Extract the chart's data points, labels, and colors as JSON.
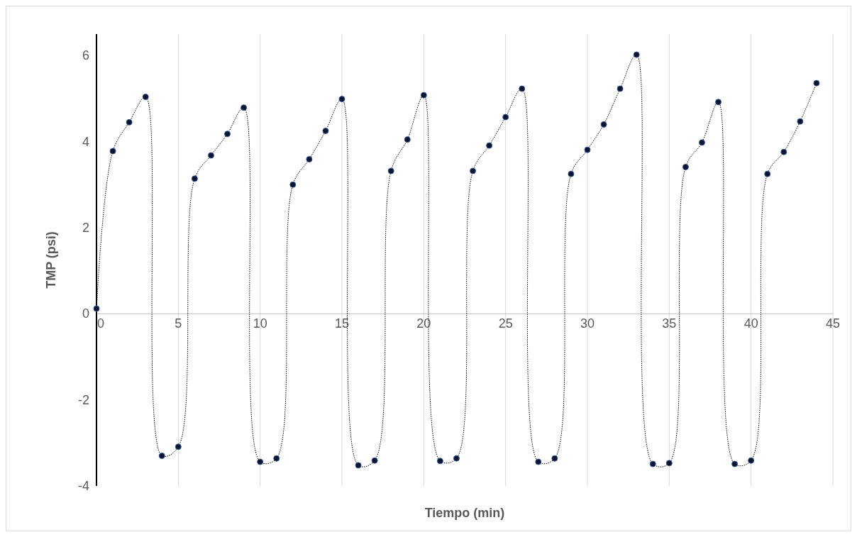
{
  "chart_data": {
    "type": "line",
    "xlabel": "Tiempo (min)",
    "ylabel": "TMP (psi)",
    "xlim": [
      0,
      45
    ],
    "xticks": [
      0,
      5,
      10,
      15,
      20,
      25,
      30,
      35,
      40,
      45
    ],
    "ylim": [
      -4,
      6.5
    ],
    "yticks": [
      -4,
      -2,
      0,
      2,
      4,
      6
    ],
    "grid": "x",
    "marker": "circle",
    "line_style": "dotted",
    "series": [
      {
        "color": "#000000",
        "x": [
          0,
          1,
          2,
          3,
          4,
          5,
          6,
          7,
          8,
          9,
          10,
          11,
          12,
          13,
          14,
          15,
          16,
          17,
          18,
          19,
          20,
          21,
          22,
          23,
          24,
          25,
          26,
          27,
          28,
          29,
          30,
          31,
          32,
          33,
          34,
          35,
          36,
          37,
          38,
          39,
          40,
          41,
          42,
          43,
          44
        ],
        "values": [
          0.12,
          3.78,
          4.45,
          5.04,
          -3.3,
          -3.09,
          3.14,
          3.68,
          4.18,
          4.79,
          -3.44,
          -3.36,
          3.0,
          3.59,
          4.25,
          4.99,
          -3.52,
          -3.41,
          3.32,
          4.05,
          5.08,
          -3.42,
          -3.36,
          3.32,
          3.91,
          4.57,
          5.23,
          -3.44,
          -3.36,
          3.25,
          3.81,
          4.4,
          5.23,
          6.02,
          -3.49,
          -3.47,
          3.41,
          3.98,
          4.92,
          -3.49,
          -3.41,
          3.25,
          3.76,
          4.47,
          5.36
        ]
      }
    ]
  }
}
